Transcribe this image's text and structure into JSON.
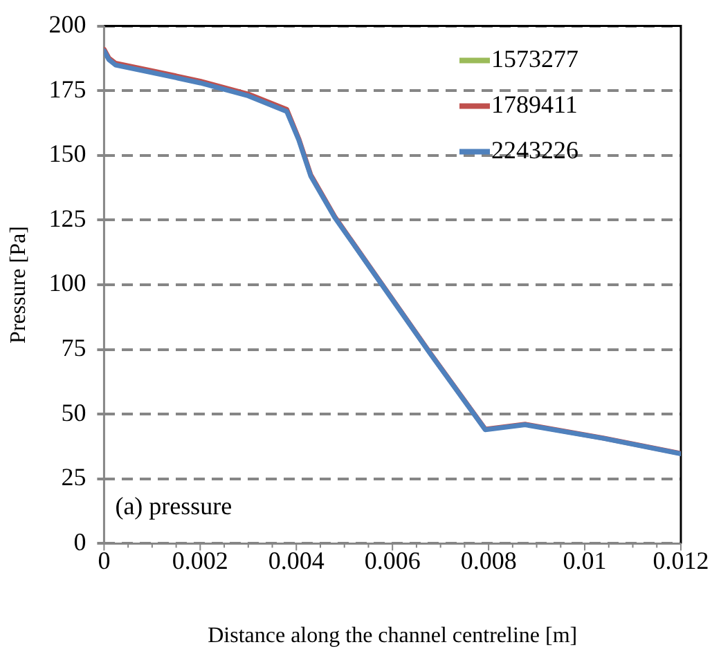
{
  "chart_data": {
    "type": "line",
    "xlabel": "Distance along the channel centreline [m]",
    "ylabel": "Pressure [Pa]",
    "annotations": [
      "(a) pressure"
    ],
    "xlim": [
      0,
      0.012
    ],
    "xticks": [
      0,
      0.002,
      0.004,
      0.006,
      0.008,
      0.01,
      0.012
    ],
    "ylim": [
      0,
      200
    ],
    "yticks": [
      0,
      25,
      50,
      75,
      100,
      125,
      150,
      175,
      200
    ],
    "grid": "y",
    "legend": "top right",
    "marker": "none",
    "line_style": "solid",
    "x": [
      0,
      0.0001,
      0.00024,
      0.001,
      0.002,
      0.003,
      0.0038,
      0.00405,
      0.0043,
      0.0048,
      0.0058,
      0.0068,
      0.00793,
      0.00876,
      0.0104,
      0.012
    ],
    "series": [
      {
        "name": "1573277",
        "color": "#9bbb59",
        "values": [
          null,
          null,
          null,
          null,
          null,
          null,
          null,
          null,
          null,
          null,
          null,
          null,
          null,
          null,
          null,
          null
        ]
      },
      {
        "name": "1789411",
        "color": "#c0504d",
        "values": [
          191,
          187.6,
          185.6,
          182.7,
          178.7,
          173.7,
          167.8,
          156.5,
          142.5,
          126.3,
          99.7,
          73.2,
          44.2,
          46.1,
          40.7,
          34.8
        ]
      },
      {
        "name": "2243226",
        "color": "#4f81bd",
        "values": [
          190.4,
          187,
          184.9,
          182,
          178,
          173,
          167,
          156,
          142,
          126,
          99.5,
          73,
          44,
          45.9,
          40.6,
          34.7
        ]
      }
    ]
  }
}
